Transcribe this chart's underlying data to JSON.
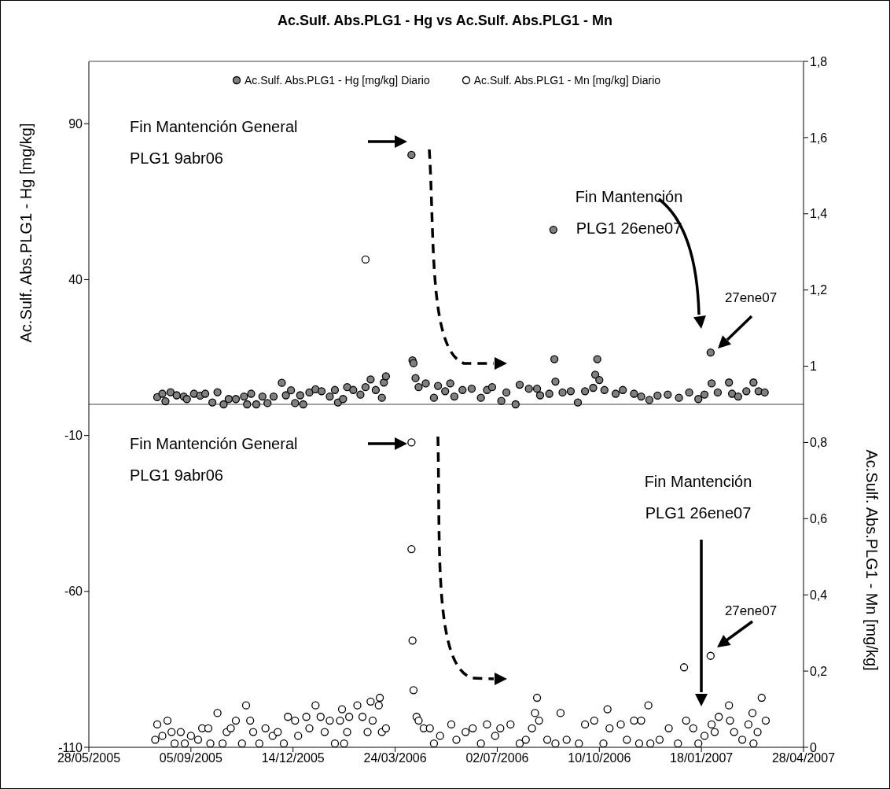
{
  "chart_data": {
    "type": "scatter",
    "title": "Ac.Sulf. Abs.PLG1 - Hg vs Ac.Sulf. Abs.PLG1 - Mn",
    "ylabel": "Ac.Sulf. Abs.PLG1 - Hg [mg/kg]",
    "y2label": "Ac.Sulf. Abs.PLG1 - Mn [mg/kg]",
    "xlim": [
      "2005-05-28",
      "2007-04-28"
    ],
    "xticks": [
      {
        "value": "2005-05-28",
        "label": "28/05/2005"
      },
      {
        "value": "2005-09-05",
        "label": "05/09/2005"
      },
      {
        "value": "2005-12-14",
        "label": "14/12/2005"
      },
      {
        "value": "2006-03-24",
        "label": "24/03/2006"
      },
      {
        "value": "2006-07-02",
        "label": "02/07/2006"
      },
      {
        "value": "2006-10-10",
        "label": "10/10/2006"
      },
      {
        "value": "2007-01-18",
        "label": "18/01/2007"
      },
      {
        "value": "2007-04-28",
        "label": "28/04/2007"
      }
    ],
    "ylim": [
      -110,
      110
    ],
    "yticks": [
      -110,
      -60,
      -10,
      40,
      90
    ],
    "y2lim": [
      0,
      1.8
    ],
    "y2ticks": [
      0,
      {
        "value": 0.2,
        "label": "0,2"
      },
      {
        "value": 0.4,
        "label": "0,4"
      },
      {
        "value": 0.6,
        "label": "0,6"
      },
      {
        "value": 0.8,
        "label": "0,8"
      },
      1,
      {
        "value": 1.2,
        "label": "1,2"
      },
      {
        "value": 1.4,
        "label": "1,4"
      },
      {
        "value": 1.6,
        "label": "1,6"
      },
      {
        "value": 1.8,
        "label": "1,8"
      }
    ],
    "marker": "circle",
    "legend": "top",
    "ref_lines": [
      {
        "axis": "y",
        "value": 0,
        "color": "#808080"
      }
    ],
    "annotations": [
      "Fin Mantención General\nPLG1 9abr06",
      "Fin Mantención\nPLG1 26ene07",
      "27ene07",
      "Fin Mantención General\nPLG1 9abr06",
      "Fin Mantención\nPLG1 26ene07",
      "27ene07"
    ],
    "series": [
      {
        "name": "Ac.Sulf. Abs.PLG1 - Hg [mg/kg] Diario",
        "color": "#808080",
        "x": [
          "2005-08-03",
          "2005-08-08",
          "2005-08-11",
          "2005-08-16",
          "2005-08-22",
          "2005-08-29",
          "2005-09-01",
          "2005-09-08",
          "2005-09-14",
          "2005-09-19",
          "2005-09-26",
          "2005-10-01",
          "2005-10-07",
          "2005-10-12",
          "2005-10-19",
          "2005-10-27",
          "2005-10-30",
          "2005-11-03",
          "2005-11-08",
          "2005-11-14",
          "2005-11-19",
          "2005-11-25",
          "2005-12-03",
          "2005-12-07",
          "2005-12-12",
          "2005-12-16",
          "2005-12-21",
          "2005-12-24",
          "2005-12-30",
          "2006-01-05",
          "2006-01-11",
          "2006-01-19",
          "2006-01-24",
          "2006-01-27",
          "2006-02-01",
          "2006-02-05",
          "2006-02-11",
          "2006-02-18",
          "2006-02-23",
          "2006-02-28",
          "2006-03-05",
          "2006-03-11",
          "2006-03-13",
          "2006-03-15",
          "2006-04-09",
          "2006-04-10",
          "2006-04-11",
          "2006-04-13",
          "2006-04-16",
          "2006-04-23",
          "2006-05-01",
          "2006-05-05",
          "2006-05-12",
          "2006-05-17",
          "2006-05-21",
          "2006-05-29",
          "2006-06-07",
          "2006-06-16",
          "2006-06-22",
          "2006-06-27",
          "2006-07-06",
          "2006-07-11",
          "2006-07-20",
          "2006-07-24",
          "2006-08-02",
          "2006-08-10",
          "2006-08-13",
          "2006-08-22",
          "2006-08-26",
          "2006-08-27",
          "2006-08-28",
          "2006-09-04",
          "2006-09-12",
          "2006-09-19",
          "2006-09-26",
          "2006-10-04",
          "2006-10-06",
          "2006-10-08",
          "2006-10-10",
          "2006-10-15",
          "2006-10-26",
          "2006-11-02",
          "2006-11-13",
          "2006-11-20",
          "2006-11-28",
          "2006-12-06",
          "2006-12-16",
          "2006-12-27",
          "2007-01-06",
          "2007-01-15",
          "2007-01-21",
          "2007-01-27",
          "2007-01-28",
          "2007-02-03",
          "2007-02-14",
          "2007-02-17",
          "2007-02-23",
          "2007-03-03",
          "2007-03-10",
          "2007-03-15",
          "2007-03-21"
        ],
        "values": [
          2.3,
          3.4,
          1.0,
          3.9,
          2.9,
          2.5,
          1.7,
          3.4,
          2.8,
          3.4,
          0.6,
          3.9,
          0,
          1.7,
          1.7,
          2.5,
          0,
          3.4,
          0,
          2.5,
          0.4,
          2.5,
          6.9,
          2.9,
          4.5,
          0.4,
          2.9,
          0,
          3.8,
          4.8,
          4.2,
          2.5,
          4.6,
          0.6,
          1.7,
          5.5,
          4.6,
          3.1,
          5.5,
          8.0,
          4.6,
          2.1,
          7.0,
          9.0,
          80,
          14.1,
          13.2,
          8.4,
          5.5,
          6.7,
          2.1,
          5.9,
          4.2,
          6.7,
          2.5,
          4.6,
          5.0,
          2.1,
          4.6,
          5.5,
          1.1,
          3.8,
          0,
          6.3,
          5.0,
          5.0,
          2.9,
          3.4,
          56,
          14.5,
          7.3,
          3.8,
          4.2,
          0.6,
          4.2,
          5.3,
          9.5,
          14.5,
          7.8,
          4.6,
          3.4,
          4.6,
          3.4,
          2.5,
          1.4,
          2.8,
          3.1,
          2.1,
          3.8,
          1.7,
          3.1,
          16.6,
          6.7,
          3.8,
          7.0,
          3.4,
          2.5,
          4.2,
          7.0,
          4.2,
          3.8
        ]
      },
      {
        "name": "Ac.Sulf. Abs.PLG1 - Mn [mg/kg] Diario",
        "color": "#ffffff",
        "axis": "y2",
        "x": [
          "2005-08-01",
          "2005-08-03",
          "2005-08-08",
          "2005-08-13",
          "2005-08-17",
          "2005-08-20",
          "2005-08-26",
          "2005-08-30",
          "2005-09-05",
          "2005-09-12",
          "2005-09-16",
          "2005-09-22",
          "2005-09-24",
          "2005-10-01",
          "2005-10-06",
          "2005-10-10",
          "2005-10-14",
          "2005-10-19",
          "2005-10-25",
          "2005-10-29",
          "2005-11-02",
          "2005-11-05",
          "2005-11-11",
          "2005-11-17",
          "2005-11-24",
          "2005-11-29",
          "2005-12-05",
          "2005-12-09",
          "2005-12-16",
          "2005-12-19",
          "2005-12-27",
          "2005-12-30",
          "2006-01-05",
          "2006-01-10",
          "2006-01-14",
          "2006-01-19",
          "2006-01-24",
          "2006-01-29",
          "2006-01-31",
          "2006-02-02",
          "2006-02-05",
          "2006-02-07",
          "2006-02-15",
          "2006-02-20",
          "2006-02-23",
          "2006-02-25",
          "2006-02-28",
          "2006-03-02",
          "2006-03-08",
          "2006-03-09",
          "2006-03-11",
          "2006-03-15",
          "2006-04-09",
          "2006-04-09",
          "2006-04-10",
          "2006-04-11",
          "2006-04-14",
          "2006-04-16",
          "2006-04-21",
          "2006-04-27",
          "2006-05-01",
          "2006-05-07",
          "2006-05-18",
          "2006-05-23",
          "2006-06-01",
          "2006-06-08",
          "2006-06-16",
          "2006-06-22",
          "2006-06-30",
          "2006-07-05",
          "2006-07-15",
          "2006-07-24",
          "2006-07-30",
          "2006-08-05",
          "2006-08-08",
          "2006-08-10",
          "2006-08-12",
          "2006-08-20",
          "2006-08-28",
          "2006-09-02",
          "2006-09-08",
          "2006-09-20",
          "2006-09-26",
          "2006-10-05",
          "2006-10-14",
          "2006-10-18",
          "2006-10-20",
          "2006-10-31",
          "2006-11-06",
          "2006-11-13",
          "2006-11-18",
          "2006-11-20",
          "2006-11-27",
          "2006-11-29",
          "2006-12-08",
          "2006-12-17",
          "2006-12-26",
          "2007-01-01",
          "2007-01-03",
          "2007-01-10",
          "2007-01-15",
          "2007-01-21",
          "2007-01-27",
          "2007-01-28",
          "2007-01-31",
          "2007-02-04",
          "2007-02-14",
          "2007-02-15",
          "2007-02-19",
          "2007-02-27",
          "2007-03-05",
          "2007-03-09",
          "2007-03-10",
          "2007-03-14",
          "2007-03-18",
          "2007-03-22"
        ],
        "values": [
          0.02,
          0.06,
          0.03,
          0.07,
          0.04,
          0.01,
          0.04,
          0.01,
          0.03,
          0.02,
          0.05,
          0.05,
          0.01,
          0.09,
          0.01,
          0.04,
          0.05,
          0.07,
          0.01,
          0.11,
          0.07,
          0.04,
          0.01,
          0.05,
          0.03,
          0.04,
          0.01,
          0.08,
          0.07,
          0.03,
          0.08,
          0.05,
          0.11,
          0.08,
          0.04,
          0.07,
          0.01,
          0.07,
          0.1,
          0.01,
          0.04,
          0.08,
          0.11,
          0.08,
          1.28,
          0.04,
          0.12,
          0.07,
          0.11,
          0.13,
          0.04,
          0.05,
          0.8,
          0.52,
          0.28,
          0.15,
          0.08,
          0.07,
          0.05,
          0.05,
          0.01,
          0.03,
          0.06,
          0.02,
          0.04,
          0.05,
          0.01,
          0.06,
          0.03,
          0.05,
          0.06,
          0.01,
          0.02,
          0.05,
          0.09,
          0.13,
          0.07,
          0.02,
          0.01,
          0.09,
          0.02,
          0.01,
          0.06,
          0.07,
          0.01,
          0.1,
          0.05,
          0.06,
          0.02,
          0.07,
          0.01,
          0.07,
          0.11,
          0.01,
          0.02,
          0.05,
          0.01,
          0.21,
          0.07,
          0.05,
          0.01,
          0.03,
          0.24,
          0.06,
          0.04,
          0.08,
          0.11,
          0.07,
          0.04,
          0.02,
          0.06,
          0.09,
          0.01,
          0.04,
          0.13,
          0.07
        ]
      }
    ]
  }
}
